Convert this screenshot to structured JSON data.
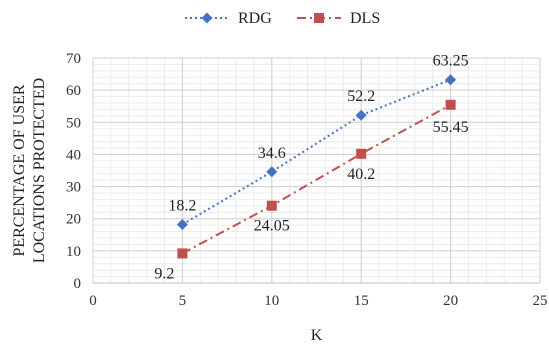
{
  "chart_data": {
    "type": "line",
    "title": "",
    "xlabel": "K",
    "ylabel": [
      "PERCENTAGE OF USER",
      "LOCATIONS PROTECTED"
    ],
    "xlim": [
      0,
      25
    ],
    "ylim": [
      0,
      70
    ],
    "x_ticks": [
      0,
      5,
      10,
      15,
      20,
      25
    ],
    "y_ticks": [
      0,
      10,
      20,
      30,
      40,
      50,
      60,
      70
    ],
    "grid": true,
    "legend_position": "top-center",
    "x": [
      5,
      10,
      15,
      20
    ],
    "series": [
      {
        "name": "RDG",
        "values": [
          18.2,
          34.6,
          52.2,
          63.25
        ],
        "labels": [
          "18.2",
          "34.6",
          "52.2",
          "63.25"
        ],
        "color": "#4472C4",
        "marker": "diamond",
        "line_style": "dotted"
      },
      {
        "name": "DLS",
        "values": [
          9.2,
          24.05,
          40.2,
          55.45
        ],
        "labels": [
          "9.2",
          "24.05",
          "40.2",
          "55.45"
        ],
        "color": "#C0504D",
        "marker": "square",
        "line_style": "dash-dot"
      }
    ]
  }
}
